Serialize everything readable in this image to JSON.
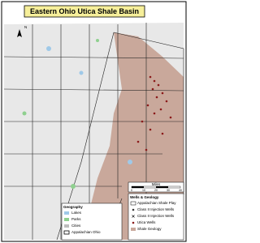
{
  "title": "Eastern Ohio Utica Shale Basin",
  "compass": "N",
  "scale": {
    "unit": "Miles",
    "ticks": [
      "0",
      "10",
      "20",
      "30",
      "40"
    ]
  },
  "legend_wells": {
    "title": "Wells & Geology",
    "items": [
      "Appalachian Shale Play",
      "Class II Injection Wells",
      "Class II Injection Wells",
      "Utica Wells",
      "Shale Geology"
    ]
  },
  "legend_geography": {
    "title": "Geography",
    "items": [
      "Lakes",
      "Parks",
      "Cities",
      "Appalachian Ohio"
    ]
  }
}
